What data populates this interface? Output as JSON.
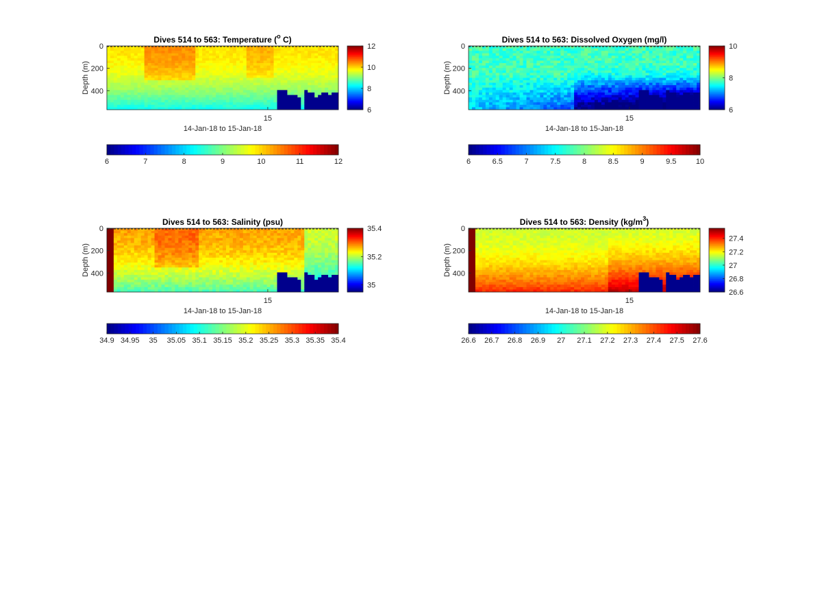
{
  "figure": {
    "title": ""
  },
  "chart_data": [
    {
      "type": "heatmap",
      "title": "Dives 514 to 563: Temperature (",
      "title_sup": "o",
      "title_end": " C)",
      "xlabel": "14-Jan-18 to 15-Jan-18",
      "ylabel": "Depth (m)",
      "x_ticks": [
        "15"
      ],
      "y_ticks": [
        0,
        200,
        400
      ],
      "ylim": [
        0,
        570
      ],
      "y_reversed": true,
      "clim": [
        6,
        12
      ],
      "colorbar_ticks": [
        "6",
        "8",
        "10",
        "12"
      ],
      "h_colorbar_ticks": [
        "6",
        "7",
        "8",
        "9",
        "10",
        "11",
        "12"
      ],
      "colormap": "jet",
      "field": {
        "surface": 9.9,
        "deep": 8.9,
        "lowlayer": 8.9,
        "pattern": "temp"
      },
      "seafloor_blocks": "yes"
    },
    {
      "type": "heatmap",
      "title": "Dives 514 to 563: Dissolved Oxygen (mg/l)",
      "title_sup": "",
      "title_end": "",
      "xlabel": "14-Jan-18 to 15-Jan-18",
      "ylabel": "Depth (m)",
      "x_ticks": [
        "15"
      ],
      "y_ticks": [
        0,
        200,
        400
      ],
      "ylim": [
        0,
        570
      ],
      "y_reversed": true,
      "clim": [
        6,
        10
      ],
      "colorbar_ticks": [
        "6",
        "8",
        "10"
      ],
      "h_colorbar_ticks": [
        "6",
        "6.5",
        "7",
        "7.5",
        "8",
        "8.5",
        "9",
        "9.5",
        "10"
      ],
      "colormap": "jet",
      "field": {
        "surface": 7.75,
        "deep": 7.1,
        "lowlayer": 6.9,
        "pattern": "oxygen"
      },
      "seafloor_blocks": "yes"
    },
    {
      "type": "heatmap",
      "title": "Dives 514 to 563: Salinity (psu)",
      "title_sup": "",
      "title_end": "",
      "xlabel": "14-Jan-18 to 15-Jan-18",
      "ylabel": "Depth (m)",
      "x_ticks": [
        "15"
      ],
      "y_ticks": [
        0,
        200,
        400
      ],
      "ylim": [
        0,
        570
      ],
      "y_reversed": true,
      "clim": [
        34.95,
        35.4
      ],
      "colorbar_ticks": [
        "35",
        "35.2",
        "35.4"
      ],
      "h_colorbar_ticks": [
        "34.9",
        "34.95",
        "35",
        "35.05",
        "35.1",
        "35.15",
        "35.2",
        "35.25",
        "35.3",
        "35.35",
        "35.4"
      ],
      "h_clim": [
        34.9,
        35.4
      ],
      "colormap": "jet",
      "field": {
        "surface": 35.27,
        "deep": 35.22,
        "lowlayer": 35.16,
        "pattern": "salt"
      },
      "seafloor_blocks": "yes"
    },
    {
      "type": "heatmap",
      "title": "Dives 514 to 563: Density (kg/m",
      "title_sup": "3",
      "title_end": ")",
      "xlabel": "14-Jan-18 to 15-Jan-18",
      "ylabel": "Depth (m)",
      "x_ticks": [
        "15"
      ],
      "y_ticks": [
        0,
        200,
        400
      ],
      "ylim": [
        0,
        570
      ],
      "y_reversed": true,
      "clim": [
        26.6,
        27.55
      ],
      "colorbar_ticks": [
        "26.6",
        "26.8",
        "27",
        "27.2",
        "27.4"
      ],
      "h_colorbar_ticks": [
        "26.6",
        "26.7",
        "26.8",
        "26.9",
        "27",
        "27.1",
        "27.2",
        "27.3",
        "27.4",
        "27.5",
        "27.6"
      ],
      "h_clim": [
        26.6,
        27.6
      ],
      "colormap": "jet",
      "field": {
        "surface": 27.15,
        "deep": 27.2,
        "lowlayer": 27.3,
        "pattern": "density"
      },
      "seafloor_blocks": "yes"
    }
  ]
}
